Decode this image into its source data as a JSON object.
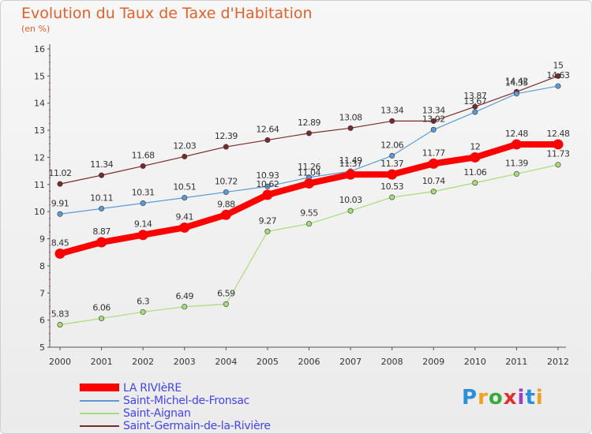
{
  "page": {
    "title": "Evolution du Taux de Taxe d'Habitation",
    "subtitle": "(en %)"
  },
  "logo": {
    "text": "Proxiti",
    "colors": [
      "#2a8fd8",
      "#f0a020",
      "#3aaa3a",
      "#e23030",
      "#9a40c0",
      "#2a8fd8",
      "#f0a020"
    ]
  },
  "chart_data": {
    "type": "line",
    "title": "Evolution du Taux de Taxe d'Habitation",
    "subtitle": "(en %)",
    "xlabel": "",
    "ylabel": "",
    "x": [
      "2000",
      "2001",
      "2002",
      "2003",
      "2004",
      "2005",
      "2006",
      "2007",
      "2008",
      "2009",
      "2010",
      "2011",
      "2012"
    ],
    "ylim": [
      5,
      16
    ],
    "yticks": [
      5,
      6,
      7,
      8,
      9,
      10,
      11,
      12,
      13,
      14,
      15,
      16
    ],
    "grid": false,
    "legend_position": "bottom-left",
    "series": [
      {
        "name": "LA RIVIèRE",
        "color": "#ff0000",
        "values": [
          8.45,
          8.87,
          9.14,
          9.41,
          9.88,
          10.62,
          11.04,
          11.37,
          11.37,
          11.77,
          12,
          12.48,
          12.48
        ],
        "labels": [
          "8.45",
          "8.87",
          "9.14",
          "9.41",
          "9.88",
          "10.62",
          "11.04",
          "11.37",
          "11.37",
          "11.77",
          "12",
          "12.48",
          "12.48"
        ]
      },
      {
        "name": "Saint-Michel-de-Fronsac",
        "color": "#5b9bd5",
        "values": [
          9.91,
          10.11,
          10.31,
          10.51,
          10.72,
          10.93,
          11.26,
          11.49,
          12.06,
          13.02,
          13.67,
          14.35,
          14.63
        ],
        "labels": [
          "9.91",
          "10.11",
          "10.31",
          "10.51",
          "10.72",
          "10.93",
          "11.26",
          "11.49",
          "12.06",
          "13.02",
          "13.67",
          "14.35",
          "14.63"
        ]
      },
      {
        "name": "Saint-Aignan",
        "color": "#a8dc78",
        "values": [
          5.83,
          6.06,
          6.3,
          6.49,
          6.59,
          9.27,
          9.55,
          10.03,
          10.53,
          10.74,
          11.06,
          11.39,
          11.73
        ],
        "labels": [
          "5.83",
          "6.06",
          "6.3",
          "6.49",
          "6.59",
          "9.27",
          "9.55",
          "10.03",
          "10.53",
          "10.74",
          "11.06",
          "11.39",
          "11.73"
        ]
      },
      {
        "name": "Saint-Germain-de-la-Rivière",
        "color": "#7a2a2a",
        "values": [
          11.02,
          11.34,
          11.68,
          12.03,
          12.39,
          12.64,
          12.89,
          13.08,
          13.34,
          13.34,
          13.87,
          14.42,
          15
        ],
        "labels": [
          "11.02",
          "11.34",
          "11.68",
          "12.03",
          "12.39",
          "12.64",
          "12.89",
          "13.08",
          "13.34",
          "13.34",
          "13.87",
          "14.42",
          "15"
        ]
      }
    ]
  }
}
